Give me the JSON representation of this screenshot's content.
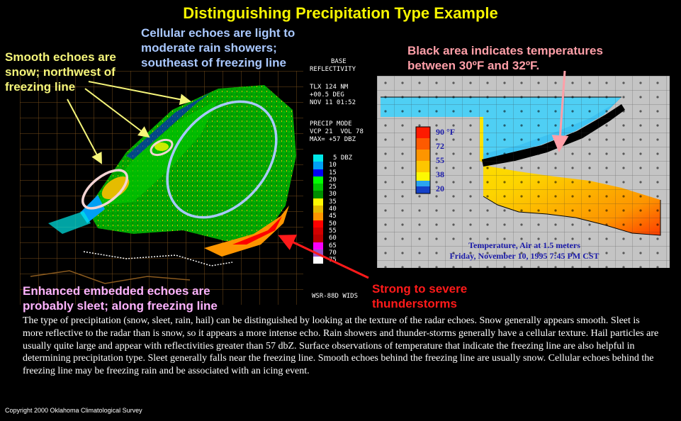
{
  "title": "Distinguishing Precipitation Type Example",
  "annotations": {
    "cellular": [
      "Cellular echoes are light to",
      "moderate rain showers;",
      "southeast of freezing line"
    ],
    "smooth": [
      "Smooth echoes are",
      "snow; northwest of",
      "freezing line"
    ],
    "black_area": [
      "Black area indicates temperatures",
      "between 30ºF and 32ºF."
    ],
    "enhanced": [
      "Enhanced embedded echoes are",
      "probably sleet; along freezing line"
    ],
    "strong": [
      "Strong to severe",
      "thunderstorms"
    ]
  },
  "radar_info": {
    "product": [
      "BASE",
      "REFLECTIVITY"
    ],
    "station": [
      "TLX 124 NM",
      "+00.5 DEG",
      "NOV 11 01:52"
    ],
    "mode": [
      "PRECIP MODE",
      "VCP 21  VOL 78",
      "MAX= +57 DBZ"
    ],
    "footer": "WSR-88D WIDS"
  },
  "dbz_legend": {
    "labels": [
      "5 DBZ",
      "10",
      "15",
      "20",
      "25",
      "30",
      "35",
      "40",
      "45",
      "50",
      "55",
      "60",
      "65",
      "70",
      "75"
    ],
    "colors": [
      "#00e8e8",
      "#019ff4",
      "#0300f4",
      "#02fd02",
      "#01c501",
      "#008e00",
      "#fdf802",
      "#e5bc00",
      "#fd9500",
      "#fd0000",
      "#d40000",
      "#bc0000",
      "#f800fd",
      "#9854c6",
      "#fdfdfd"
    ]
  },
  "temp_map": {
    "scale_labels": [
      "90 °F",
      "72",
      "55",
      "38",
      "20"
    ],
    "caption": [
      "Temperature, Air at 1.5 meters",
      "Friday, November 10, 1995 7:45 PM CST"
    ]
  },
  "colors": {
    "title": "#f7f500",
    "cellular": "#a9c8ff",
    "smooth": "#f5f57a",
    "black_area": "#ff9fa8",
    "enhanced": "#ffb3ff",
    "strong": "#ff1a1a"
  },
  "paragraph": "The type of precipitation (snow, sleet, rain, hail) can be distinguished by looking at the texture of the radar echoes.  Snow generally appears smooth.  Sleet is more reflective to the radar than is snow, so it appears a more intense echo.  Rain showers and thunder-storms generally have a cellular texture.  Hail particles are usually quite large and appear with reflectivities greater than 57 dbZ.  Surface observations of temperature that indicate the freezing line are also helpful in determining precipitation type.  Sleet generally falls near the freezing line.  Smooth echoes behind the freezing line are usually snow.  Cellular echoes behind the freezing line may be freezing rain and be associated with an icing event.",
  "copyright": "Copyright 2000 Oklahoma Climatological Survey"
}
